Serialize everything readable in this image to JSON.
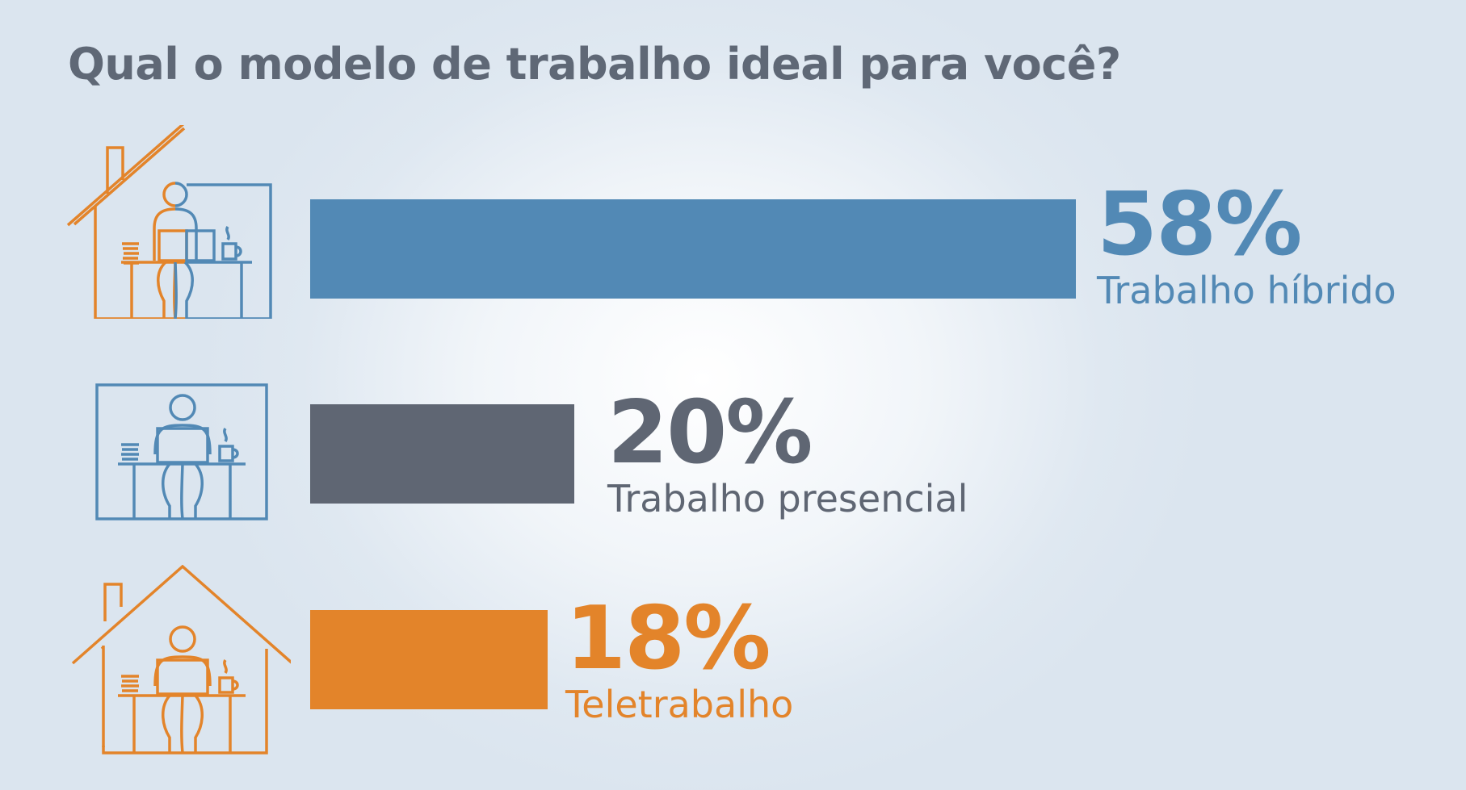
{
  "title": "Qual o modelo de trabalho ideal para você?",
  "colors": {
    "hybrid": "#5289b5",
    "presencial": "#5f6673",
    "tele": "#e3842a",
    "title": "#5f6876"
  },
  "chart_data": {
    "type": "bar",
    "orientation": "horizontal",
    "title": "Qual o modelo de trabalho ideal para você?",
    "categories": [
      "Trabalho híbrido",
      "Trabalho presencial",
      "Teletrabalho"
    ],
    "values": [
      58,
      20,
      18
    ],
    "value_labels": [
      "58%",
      "20%",
      "18%"
    ],
    "unit": "%",
    "xlim": [
      0,
      58
    ],
    "grid": false,
    "legend": "none"
  },
  "rows": [
    {
      "pct": "58%",
      "label": "Trabalho híbrido",
      "icon": "hybrid-work-icon"
    },
    {
      "pct": "20%",
      "label": "Trabalho presencial",
      "icon": "office-work-icon"
    },
    {
      "pct": "18%",
      "label": "Teletrabalho",
      "icon": "home-work-icon"
    }
  ]
}
